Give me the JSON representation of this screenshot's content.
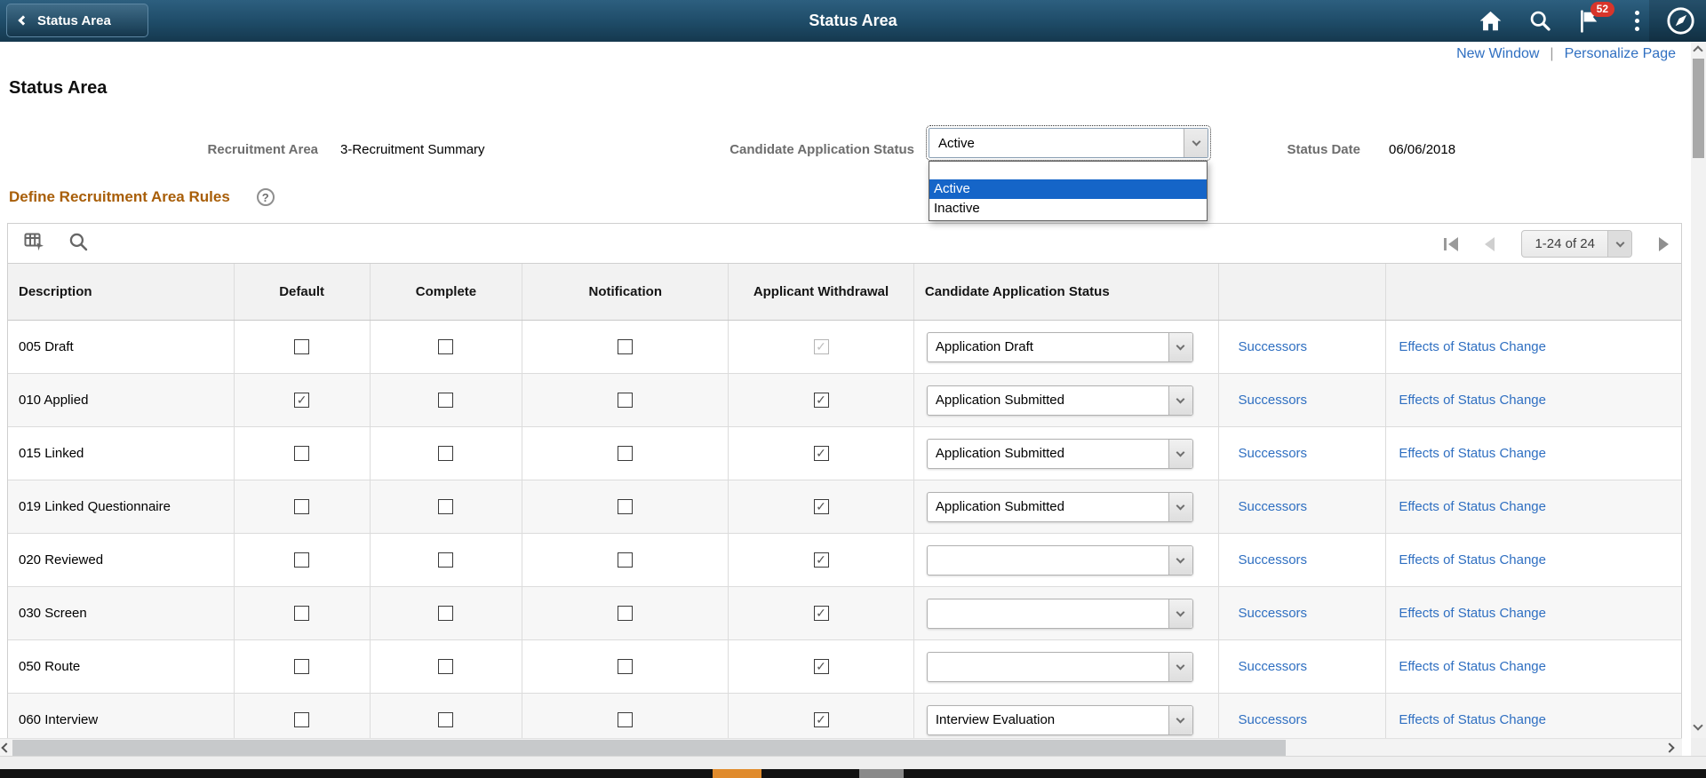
{
  "colors": {
    "header-top": "#2d5f7f",
    "header-bottom": "#15384e",
    "link-blue": "#2f6fc1",
    "section-orange": "#a85e08",
    "label-gray": "#6d6d6d",
    "badge-red": "#d8352b",
    "select-highlight": "#1565c8",
    "accent-orange": "#e08b2d"
  },
  "header": {
    "back_label": "Status Area",
    "title": "Status Area",
    "notification_count": "52"
  },
  "toolbar_links": {
    "new_window": "New Window",
    "divider": "|",
    "personalize_page": "Personalize Page"
  },
  "page": {
    "title": "Status Area",
    "recruitment_area_label": "Recruitment Area",
    "recruitment_area_value": "3-Recruitment Summary",
    "cas_label": "Candidate Application Status",
    "cas_value": "Active",
    "cas_options": [
      "",
      "Active",
      "Inactive"
    ],
    "cas_selected_index": 1,
    "status_date_label": "Status Date",
    "status_date_value": "06/06/2018"
  },
  "section": {
    "title": "Define Recruitment Area Rules",
    "help_glyph": "?"
  },
  "grid": {
    "pagination": {
      "range_label": "1-24 of 24"
    },
    "columns": [
      "Description",
      "Default",
      "Complete",
      "Notification",
      "Applicant Withdrawal",
      "Candidate Application Status",
      "",
      ""
    ],
    "successors_label": "Successors",
    "effects_label": "Effects of Status Change",
    "rows": [
      {
        "description": "005 Draft",
        "default": false,
        "complete": false,
        "notification": false,
        "withdrawal": true,
        "withdrawal_disabled": true,
        "status": "Application Draft"
      },
      {
        "description": "010 Applied",
        "default": true,
        "complete": false,
        "notification": false,
        "withdrawal": true,
        "withdrawal_disabled": false,
        "status": "Application Submitted"
      },
      {
        "description": "015 Linked",
        "default": false,
        "complete": false,
        "notification": false,
        "withdrawal": true,
        "withdrawal_disabled": false,
        "status": "Application Submitted"
      },
      {
        "description": "019 Linked Questionnaire",
        "default": false,
        "complete": false,
        "notification": false,
        "withdrawal": true,
        "withdrawal_disabled": false,
        "status": "Application Submitted"
      },
      {
        "description": "020 Reviewed",
        "default": false,
        "complete": false,
        "notification": false,
        "withdrawal": true,
        "withdrawal_disabled": false,
        "status": ""
      },
      {
        "description": "030 Screen",
        "default": false,
        "complete": false,
        "notification": false,
        "withdrawal": true,
        "withdrawal_disabled": false,
        "status": ""
      },
      {
        "description": "050 Route",
        "default": false,
        "complete": false,
        "notification": false,
        "withdrawal": true,
        "withdrawal_disabled": false,
        "status": ""
      },
      {
        "description": "060 Interview",
        "default": false,
        "complete": false,
        "notification": false,
        "withdrawal": true,
        "withdrawal_disabled": false,
        "status": "Interview Evaluation"
      }
    ]
  }
}
